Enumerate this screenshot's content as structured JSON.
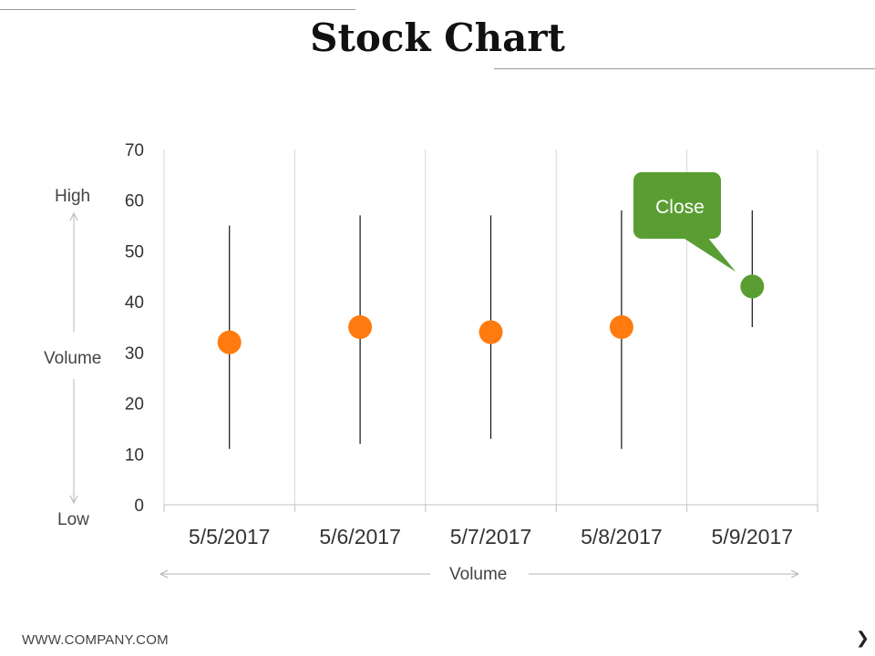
{
  "slide": {
    "title": "Stock Chart",
    "footer": "WWW.COMPANY.COM",
    "next_glyph": "❯",
    "next_icon": "chevron-right-icon"
  },
  "side_axis": {
    "top": "High",
    "middle": "Volume",
    "bottom": "Low"
  },
  "bottom_axis": {
    "label": "Volume"
  },
  "callout": {
    "text": "Close",
    "color": "#5a9e33"
  },
  "colors": {
    "marker": "#ff7b0f",
    "highlight": "#5a9e33",
    "whisker": "#111111",
    "grid": "#d9d9d9"
  },
  "chart_data": {
    "type": "scatter",
    "categories": [
      "5/5/2017",
      "5/6/2017",
      "5/7/2017",
      "5/8/2017",
      "5/9/2017"
    ],
    "series": [
      {
        "name": "High",
        "values": [
          55,
          57,
          57,
          58,
          58
        ]
      },
      {
        "name": "Low",
        "values": [
          11,
          12,
          13,
          11,
          35
        ]
      },
      {
        "name": "Close",
        "values": [
          32,
          35,
          34,
          35,
          43
        ]
      }
    ],
    "ylim": [
      0,
      70
    ],
    "yticks": [
      0,
      10,
      20,
      30,
      40,
      50,
      60,
      70
    ],
    "highlight_index": 4,
    "grid": true,
    "legend": "none"
  }
}
